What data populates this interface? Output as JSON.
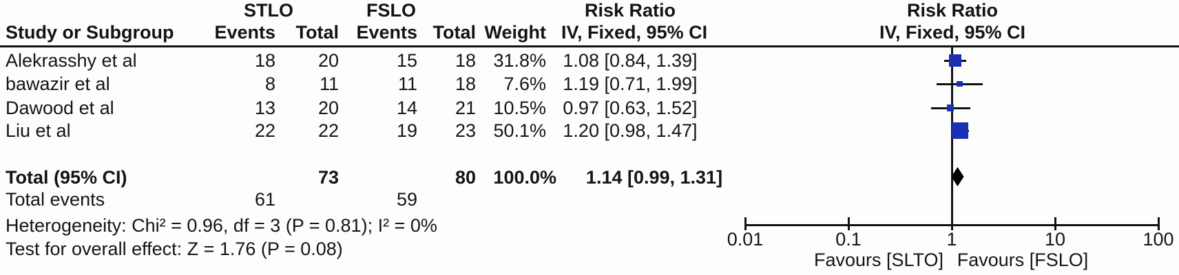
{
  "table": {
    "group_left": "STLO",
    "group_right": "FSLO",
    "header": {
      "study": "Study or Subgroup",
      "events": "Events",
      "total": "Total",
      "weight": "Weight",
      "risk_ratio": "Risk Ratio",
      "method": "IV, Fixed, 95% CI"
    },
    "rows": [
      {
        "study": "Alekrasshy et al",
        "e1": "18",
        "t1": "20",
        "e2": "15",
        "t2": "18",
        "weight": "31.8%",
        "ci": "1.08 [0.84, 1.39]"
      },
      {
        "study": "bawazir et al",
        "e1": "8",
        "t1": "11",
        "e2": "11",
        "t2": "18",
        "weight": "7.6%",
        "ci": "1.19 [0.71, 1.99]"
      },
      {
        "study": "Dawood et al",
        "e1": "13",
        "t1": "20",
        "e2": "14",
        "t2": "21",
        "weight": "10.5%",
        "ci": "0.97 [0.63, 1.52]"
      },
      {
        "study": "Liu et al",
        "e1": "22",
        "t1": "22",
        "e2": "19",
        "t2": "23",
        "weight": "50.1%",
        "ci": "1.20 [0.98, 1.47]"
      }
    ],
    "total_row": {
      "label": "Total (95% CI)",
      "t1": "73",
      "t2": "80",
      "weight": "100.0%",
      "ci": "1.14 [0.99, 1.31]"
    },
    "total_events": {
      "label": "Total events",
      "e1": "61",
      "e2": "59"
    },
    "heterogeneity": "Heterogeneity: Chi² = 0.96, df = 3 (P = 0.81); I² = 0%",
    "overall_effect": "Test for overall effect: Z = 1.76 (P = 0.08)"
  },
  "chart_data": {
    "type": "forest",
    "title": "Risk Ratio",
    "subtitle": "IV, Fixed, 95% CI",
    "x_scale": "log10",
    "xlim": [
      0.01,
      100
    ],
    "axis_ticks": [
      "0.01",
      "0.1",
      "1",
      "10",
      "100"
    ],
    "favours_left": "Favours [SLTO]",
    "favours_right": "Favours [FSLO]",
    "marker_color": "#1b2fb2",
    "diamond_color": "#000000",
    "line_color": "#111111",
    "studies": [
      {
        "name": "Alekrasshy et al",
        "rr": 1.08,
        "lo": 0.84,
        "hi": 1.39,
        "weight": 31.8
      },
      {
        "name": "bawazir et al",
        "rr": 1.19,
        "lo": 0.71,
        "hi": 1.99,
        "weight": 7.6
      },
      {
        "name": "Dawood et al",
        "rr": 0.97,
        "lo": 0.63,
        "hi": 1.52,
        "weight": 10.5
      },
      {
        "name": "Liu et al",
        "rr": 1.2,
        "lo": 0.98,
        "hi": 1.47,
        "weight": 50.1
      }
    ],
    "total": {
      "rr": 1.14,
      "lo": 0.99,
      "hi": 1.31
    }
  }
}
